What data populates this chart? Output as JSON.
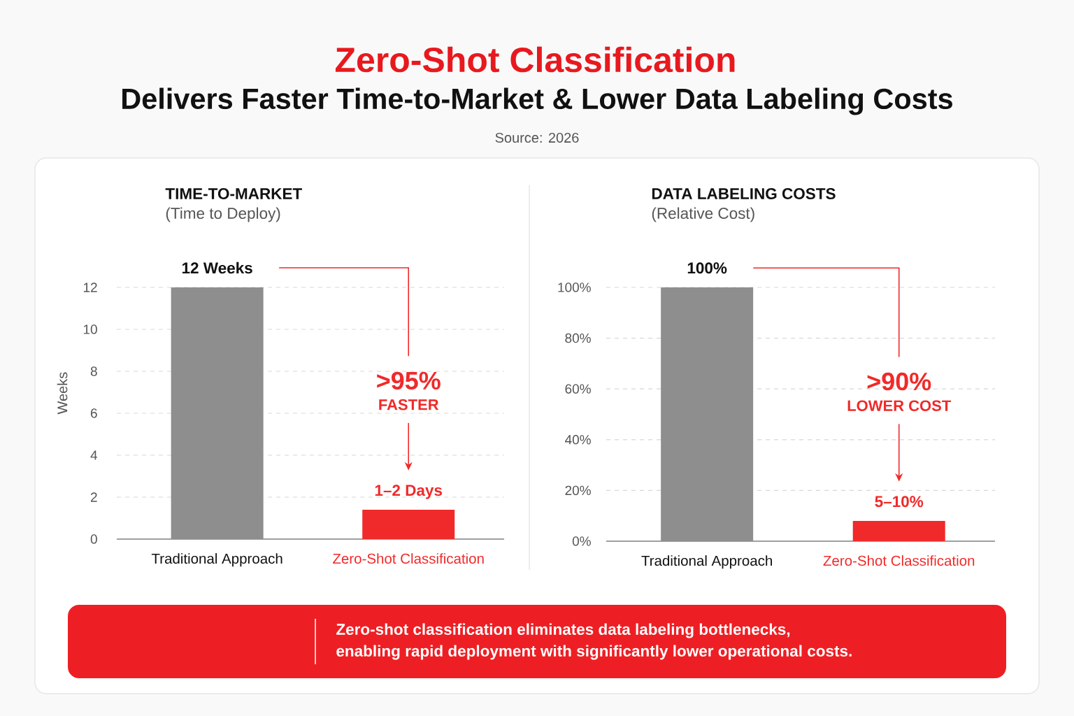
{
  "chart_data": [
    {
      "type": "other",
      "title": "Zero-Shot Classification",
      "subtitle": "Delivers Faster Time-to-Market & Lower Data Labeling Costs",
      "annotations": [
        "Source: 2026"
      ]
    },
    {
      "type": "bar",
      "title": "TIME-TO-MARKET",
      "subtitle": "(Time to Deploy)",
      "ylabel": "Weeks",
      "categories": [
        "Traditional Approach",
        "Zero-Shot Classification"
      ],
      "values": [
        12,
        1.4
      ],
      "colors": [
        "#8e8e8e",
        "#f02a2a"
      ],
      "value_labels": [
        "12 Weeks",
        "1–2 Days"
      ],
      "ylim": [
        0,
        12
      ],
      "yticks": [
        0,
        2,
        4,
        6,
        8,
        10,
        12
      ],
      "grid": "y",
      "annotations": [
        ">95%",
        "FASTER"
      ]
    },
    {
      "type": "bar",
      "title": "DATA LABELING COSTS",
      "subtitle": "(Relative Cost)",
      "categories": [
        "Traditional Approach",
        "Zero-Shot Classification"
      ],
      "values": [
        100,
        8
      ],
      "colors": [
        "#8e8e8e",
        "#f02a2a"
      ],
      "value_labels": [
        "100%",
        null
      ],
      "ylim": [
        0,
        100
      ],
      "yticks": [
        {
          "value": 0,
          "label": "0%"
        },
        {
          "value": 20,
          "label": "20%"
        },
        {
          "value": 40,
          "label": "40%"
        },
        {
          "value": 60,
          "label": "60%"
        },
        {
          "value": 80,
          "label": "80%"
        },
        {
          "value": 100,
          "label": "100%"
        }
      ],
      "grid": "y",
      "annotations": [
        ">90%",
        "LOWER COST",
        {
          "text": "5–10%",
          "x": "Zero-Shot Classification",
          "y": 8
        }
      ]
    },
    {
      "type": "other",
      "annotations": [
        "Zero-shot classification eliminates data labeling bottlenecks,",
        "enabling rapid deployment with significantly lower operational costs."
      ]
    }
  ]
}
